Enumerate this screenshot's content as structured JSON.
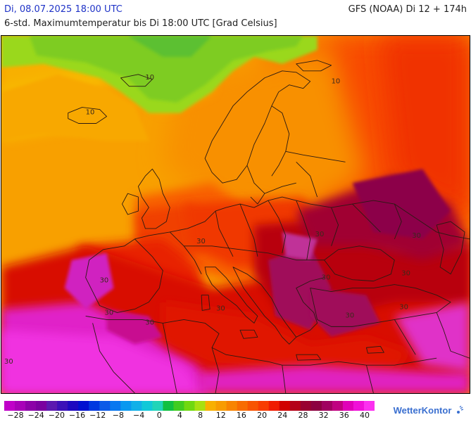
{
  "header": {
    "date": "Di, 08.07.2025 18:00 UTC",
    "model": "GFS (NOAA) Di 12 + 174h",
    "description": "6-std. Maximumtemperatur bis Di 18:00 UTC [Grad Celsius]"
  },
  "map": {
    "contour_labels": [
      "10",
      "10",
      "10",
      "30",
      "30",
      "30",
      "30",
      "30",
      "30",
      "30",
      "30",
      "30",
      "30",
      "30",
      "30"
    ]
  },
  "legend": {
    "ticks": [
      "−28",
      "−24",
      "−20",
      "−16",
      "−12",
      "−8",
      "−4",
      "0",
      "4",
      "8",
      "12",
      "16",
      "20",
      "24",
      "28",
      "32",
      "36",
      "40"
    ],
    "colors": [
      "#c000c8",
      "#a800b8",
      "#8c00a8",
      "#7a00a0",
      "#5c18b0",
      "#3c10b8",
      "#1e08c0",
      "#0010d0",
      "#0038e0",
      "#0c5ae8",
      "#0878f0",
      "#0898f0",
      "#10b0e8",
      "#10c8d8",
      "#20d4b8",
      "#10c040",
      "#40cc20",
      "#70d810",
      "#a8e010",
      "#f8b000",
      "#f89c00",
      "#f88400",
      "#f86c00",
      "#f85400",
      "#f83c00",
      "#f01c00",
      "#d00000",
      "#b40018",
      "#980030",
      "#8c0040",
      "#a00060",
      "#c00080",
      "#e000b8",
      "#f010d8",
      "#fc30f0"
    ]
  },
  "logo": {
    "text": "WetterKontor"
  }
}
